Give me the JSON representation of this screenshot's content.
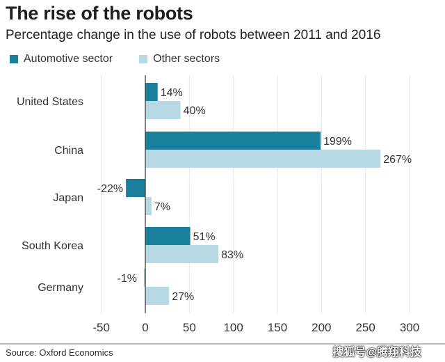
{
  "chart_data": {
    "type": "bar",
    "orientation": "horizontal",
    "title": "The rise of the robots",
    "subtitle": "Percentage change in the use of robots between 2011 and 2016",
    "categories": [
      "United States",
      "China",
      "Japan",
      "South Korea",
      "Germany"
    ],
    "series": [
      {
        "name": "Automotive sector",
        "color": "#1a7f9c",
        "values": [
          14,
          199,
          -22,
          51,
          -1
        ],
        "labels": [
          "14%",
          "199%",
          "-22%",
          "51%",
          "-1%"
        ]
      },
      {
        "name": "Other sectors",
        "color": "#b6d9e3",
        "values": [
          40,
          267,
          7,
          83,
          27
        ],
        "labels": [
          "40%",
          "267%",
          "7%",
          "83%",
          "27%"
        ]
      }
    ],
    "xlim": [
      -50,
      300
    ],
    "xticks": [
      -50,
      0,
      50,
      100,
      150,
      200,
      250,
      300
    ],
    "xtick_labels": [
      "-50",
      "0",
      "50",
      "100",
      "150",
      "200",
      "250",
      "300"
    ],
    "grid": true,
    "legend_position": "top-left",
    "xlabel": "",
    "ylabel": ""
  },
  "source": "Source: Oxford Economics",
  "watermark": "搜狐号@腾翔科技"
}
